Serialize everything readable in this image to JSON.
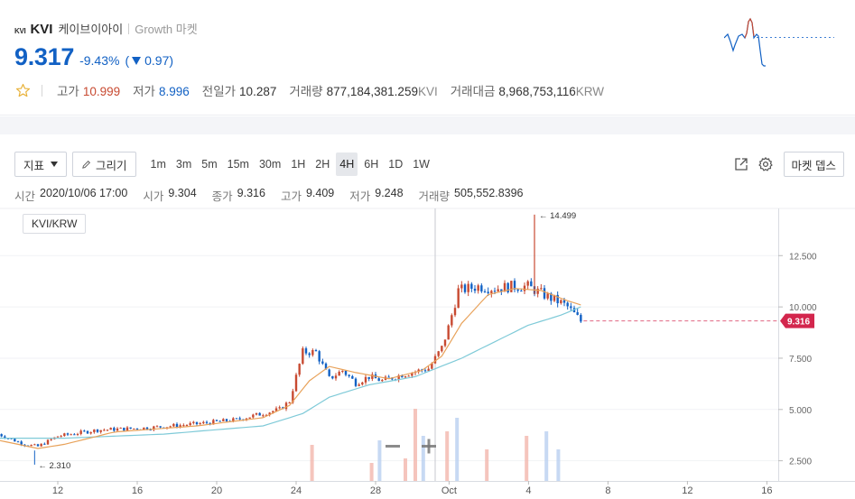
{
  "coin": {
    "logo_text": "KVI",
    "symbol": "KVI",
    "name": "케이브이아이",
    "market": "Growth 마켓"
  },
  "price": {
    "current": "9.317",
    "change_pct": "-9.43%",
    "change_amount_open": "(",
    "change_amount": "0.97)",
    "direction": "down"
  },
  "stats": [
    {
      "label": "고가",
      "value": "10.999",
      "tone": "red",
      "unit": ""
    },
    {
      "label": "저가",
      "value": "8.996",
      "tone": "blue",
      "unit": ""
    },
    {
      "label": "전일가",
      "value": "10.287",
      "tone": "dark",
      "unit": ""
    },
    {
      "label": "거래량",
      "value": "877,184,381.259",
      "tone": "dark",
      "unit": "KVI"
    },
    {
      "label": "거래대금",
      "value": "8,968,753,116",
      "tone": "dark",
      "unit": "KRW"
    }
  ],
  "toolbar": {
    "indicator_label": "지표",
    "draw_label": "그리기",
    "intervals": [
      "1m",
      "3m",
      "5m",
      "15m",
      "30m",
      "1H",
      "2H",
      "4H",
      "6H",
      "1D",
      "1W"
    ],
    "active_interval": "4H",
    "market_depth_label": "마켓 뎁스"
  },
  "ohlc": [
    {
      "key": "시간",
      "value": "2020/10/06 17:00"
    },
    {
      "key": "시가",
      "value": "9.304"
    },
    {
      "key": "종가",
      "value": "9.316"
    },
    {
      "key": "고가",
      "value": "9.409"
    },
    {
      "key": "저가",
      "value": "9.248"
    },
    {
      "key": "거래량",
      "value": "505,552.8396"
    }
  ],
  "pair_label": "KVI/KRW",
  "colors": {
    "up": "#c84a31",
    "down": "#1261c4",
    "ma_short": "#e8a25a",
    "ma_long": "#7fcad8",
    "price_tag": "#d3264d",
    "accent_blue": "#1261c4"
  },
  "chart_data": {
    "type": "candlestick",
    "y_axis_ticks": [
      "2.500",
      "5.000",
      "7.500",
      "10.000",
      "12.500"
    ],
    "ylim": [
      2.0,
      14.8
    ],
    "x_axis_ticks": [
      "12",
      "16",
      "20",
      "24",
      "28",
      "Oct",
      "4",
      "8",
      "12",
      "16"
    ],
    "last_price_tag": "9.316",
    "high_marker": "← 14.499",
    "low_marker": "← 2.310",
    "price_path": [
      [
        0,
        3.8
      ],
      [
        8,
        3.3
      ],
      [
        12,
        3.2
      ],
      [
        18,
        3.7
      ],
      [
        30,
        4.0
      ],
      [
        45,
        4.1
      ],
      [
        60,
        4.3
      ],
      [
        72,
        4.5
      ],
      [
        85,
        5.0
      ],
      [
        88,
        5.4
      ],
      [
        92,
        7.8
      ],
      [
        96,
        7.8
      ],
      [
        100,
        6.5
      ],
      [
        104,
        6.9
      ],
      [
        108,
        6.3
      ],
      [
        112,
        6.6
      ],
      [
        116,
        6.4
      ],
      [
        122,
        6.7
      ],
      [
        130,
        7.0
      ],
      [
        134,
        8.0
      ],
      [
        136,
        9.0
      ],
      [
        139,
        10.8
      ],
      [
        145,
        11.0
      ],
      [
        150,
        10.9
      ],
      [
        155,
        11.0
      ],
      [
        160,
        11.0
      ],
      [
        166,
        10.5
      ],
      [
        170,
        10.2
      ],
      [
        172,
        10.0
      ],
      [
        176,
        9.3
      ]
    ],
    "ma_short": [
      [
        0,
        3.5
      ],
      [
        12,
        3.1
      ],
      [
        20,
        3.3
      ],
      [
        35,
        3.9
      ],
      [
        60,
        4.2
      ],
      [
        80,
        4.6
      ],
      [
        88,
        5.2
      ],
      [
        94,
        6.4
      ],
      [
        100,
        7.1
      ],
      [
        108,
        6.8
      ],
      [
        118,
        6.5
      ],
      [
        128,
        6.9
      ],
      [
        134,
        7.6
      ],
      [
        140,
        9.2
      ],
      [
        148,
        10.6
      ],
      [
        156,
        10.9
      ],
      [
        164,
        10.8
      ],
      [
        172,
        10.3
      ],
      [
        176,
        10.1
      ]
    ],
    "ma_long": [
      [
        0,
        3.6
      ],
      [
        20,
        3.6
      ],
      [
        50,
        3.8
      ],
      [
        80,
        4.2
      ],
      [
        92,
        4.8
      ],
      [
        100,
        5.6
      ],
      [
        112,
        6.2
      ],
      [
        126,
        6.6
      ],
      [
        140,
        7.5
      ],
      [
        150,
        8.3
      ],
      [
        160,
        9.1
      ],
      [
        170,
        9.6
      ],
      [
        176,
        10.0
      ]
    ],
    "hours_per_step": 4,
    "start_day": 9,
    "volume_bars": [
      {
        "day": 24.8,
        "value": 0.8,
        "dir": "up"
      },
      {
        "day": 27.8,
        "value": 0.4,
        "dir": "up"
      },
      {
        "day": 28.2,
        "value": 0.9,
        "dir": "down"
      },
      {
        "day": 29.5,
        "value": 0.5,
        "dir": "up"
      },
      {
        "day": 30.0,
        "value": 1.6,
        "dir": "up"
      },
      {
        "day": 30.4,
        "value": 1.0,
        "dir": "down"
      },
      {
        "day": 31.6,
        "value": 1.1,
        "dir": "up"
      },
      {
        "day": 32.1,
        "value": 1.4,
        "dir": "down"
      },
      {
        "day": 33.6,
        "value": 0.7,
        "dir": "up"
      },
      {
        "day": 35.6,
        "value": 1.0,
        "dir": "up"
      },
      {
        "day": 36.6,
        "value": 1.1,
        "dir": "down"
      },
      {
        "day": 37.2,
        "value": 0.7,
        "dir": "down"
      }
    ]
  }
}
